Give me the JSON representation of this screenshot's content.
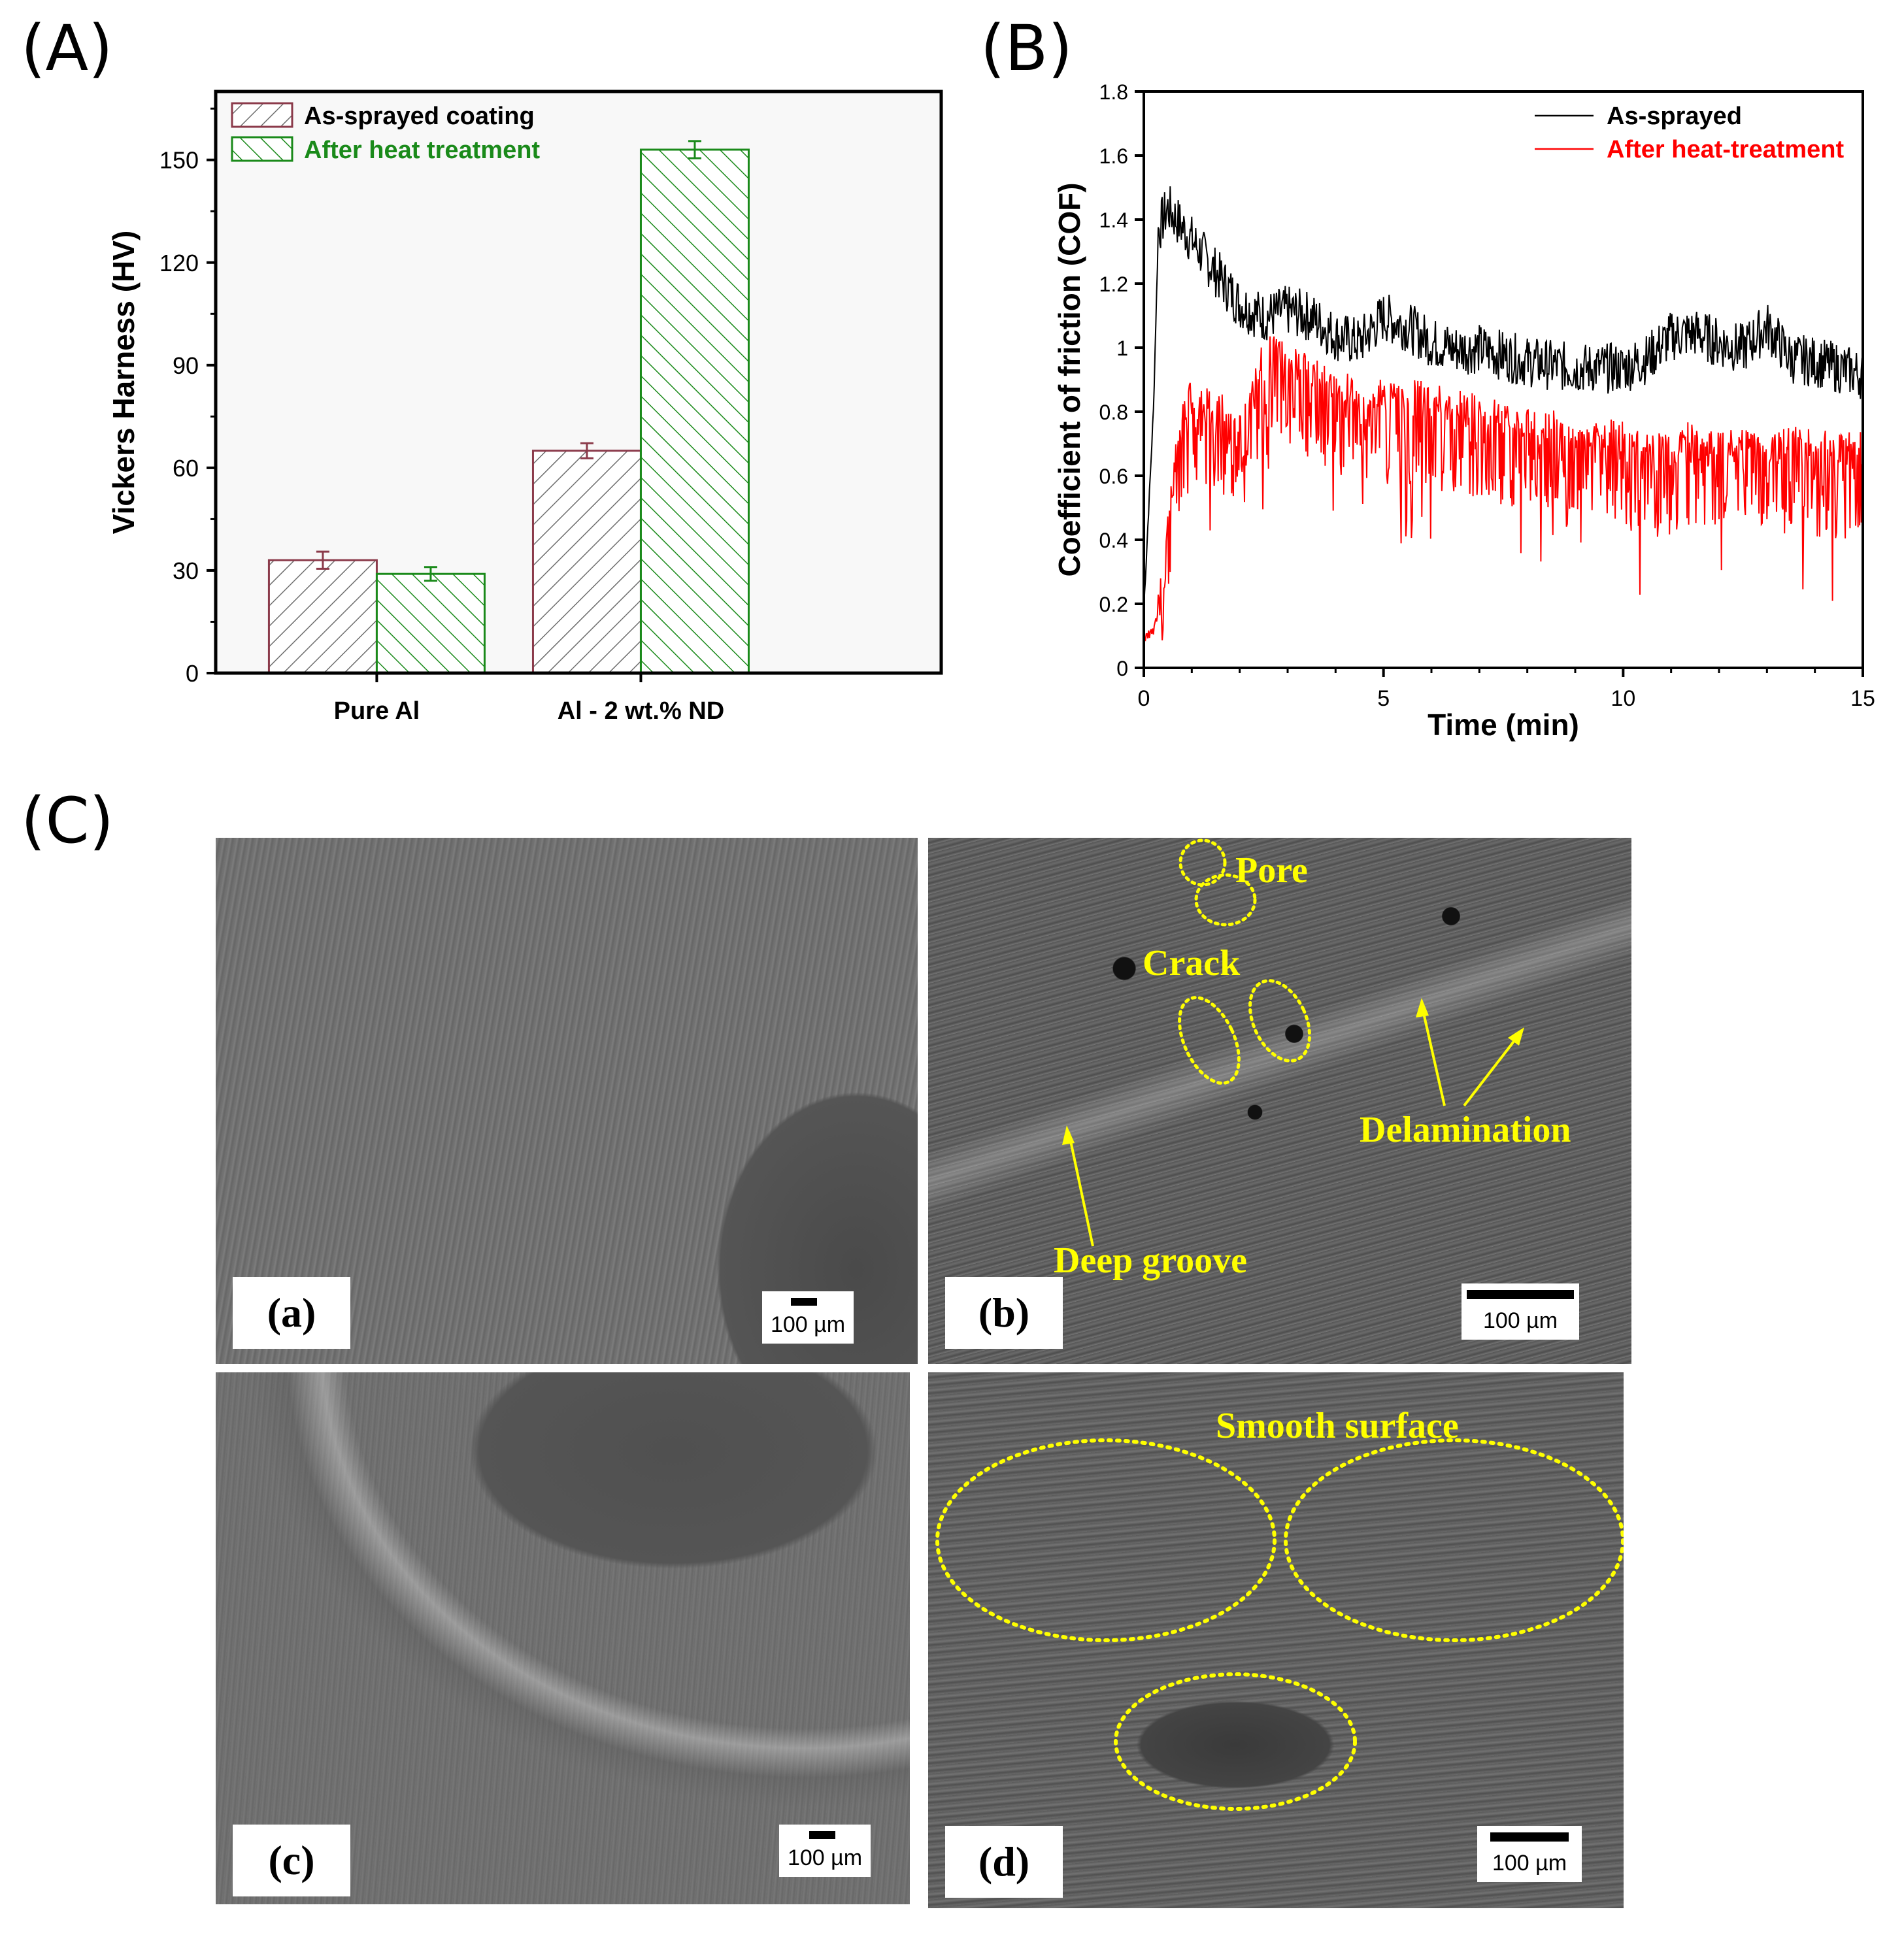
{
  "panels": {
    "A": {
      "label": "(A)"
    },
    "B": {
      "label": "(B)"
    },
    "C": {
      "label": "(C)"
    }
  },
  "chart_data": [
    {
      "type": "bar",
      "categories": [
        "Pure Al",
        "Al - 2 wt.% ND"
      ],
      "series": [
        {
          "name": "As-sprayed coating",
          "values": [
            33,
            65
          ],
          "errors": [
            2.5,
            2.2
          ],
          "color": "#8b3a4a",
          "hatch": "diagonal-forward"
        },
        {
          "name": "After heat treatment",
          "values": [
            29,
            153
          ],
          "errors": [
            2.0,
            2.5
          ],
          "color": "#1a8a1a",
          "hatch": "diagonal-backward"
        }
      ],
      "title": "",
      "xlabel": "",
      "ylabel": "Vickers Harness (HV)",
      "ylim": [
        0,
        170
      ],
      "yticks": [
        0,
        30,
        60,
        90,
        120,
        150
      ],
      "legend": "top-left",
      "grid": false
    },
    {
      "type": "line",
      "series": [
        {
          "name": "As-sprayed",
          "color": "#000000",
          "x": [
            0,
            0.2,
            0.3,
            0.5,
            1,
            1.5,
            2,
            2.5,
            3,
            3.5,
            4,
            4.5,
            5,
            5.5,
            6,
            6.5,
            7,
            7.5,
            8,
            8.5,
            9,
            9.5,
            10,
            10.5,
            11,
            11.5,
            12,
            12.5,
            13,
            13.5,
            14,
            14.5,
            15
          ],
          "y": [
            0.18,
            0.8,
            1.35,
            1.42,
            1.32,
            1.22,
            1.12,
            1.08,
            1.1,
            1.08,
            1.02,
            1.0,
            1.08,
            1.05,
            1.0,
            0.98,
            0.98,
            0.96,
            0.94,
            0.93,
            0.92,
            0.92,
            0.92,
            0.95,
            1.02,
            1.03,
            1.0,
            0.98,
            1.05,
            0.95,
            0.94,
            0.92,
            0.9
          ],
          "amplitude": 0.1
        },
        {
          "name": "After heat-treatment",
          "color": "#ff0000",
          "x": [
            0,
            0.2,
            0.4,
            0.6,
            0.8,
            1,
            1.5,
            2,
            2.5,
            3,
            3.5,
            4,
            4.5,
            5,
            5.5,
            6,
            6.5,
            7,
            7.5,
            8,
            8.5,
            9,
            9.5,
            10,
            10.5,
            11,
            11.5,
            12,
            12.5,
            13,
            13.5,
            14,
            14.5,
            15
          ],
          "y": [
            0.1,
            0.12,
            0.25,
            0.55,
            0.75,
            0.82,
            0.8,
            0.72,
            0.95,
            0.95,
            0.88,
            0.85,
            0.82,
            0.82,
            0.82,
            0.8,
            0.78,
            0.78,
            0.74,
            0.72,
            0.72,
            0.68,
            0.68,
            0.7,
            0.66,
            0.64,
            0.7,
            0.66,
            0.66,
            0.64,
            0.67,
            0.66,
            0.65,
            0.66
          ],
          "amplitude": 0.25
        }
      ],
      "title": "",
      "xlabel": "Time (min)",
      "ylabel": "Coefficient of friction (COF)",
      "xlim": [
        0,
        15
      ],
      "ylim": [
        0,
        1.8
      ],
      "xticks": [
        0,
        5,
        10,
        15
      ],
      "yticks": [
        0,
        0.2,
        0.4,
        0.6,
        0.8,
        1,
        1.2,
        1.4,
        1.6,
        1.8
      ],
      "ytick_labels": [
        "0",
        "0.2",
        "0.4",
        "0.6",
        "0.8",
        "1",
        "1.2",
        "1.4",
        "1.6",
        "1.8"
      ],
      "legend": "top-right",
      "grid": false
    }
  ],
  "sem": {
    "a": {
      "label": "(a)",
      "scale": "100 µm"
    },
    "b": {
      "label": "(b)",
      "scale": "100 µm",
      "annotations": {
        "pore": "Pore",
        "crack": "Crack",
        "delamination": "Delamination",
        "deep_groove": "Deep groove"
      }
    },
    "c": {
      "label": "(c)",
      "scale": "100 µm"
    },
    "d": {
      "label": "(d)",
      "scale": "100 µm",
      "annotations": {
        "smooth": "Smooth surface"
      }
    }
  },
  "colors": {
    "annotation": "#ffff00",
    "sem_tone_dark": "#3a3a3a",
    "sem_tone_light": "#8a8a8a"
  }
}
